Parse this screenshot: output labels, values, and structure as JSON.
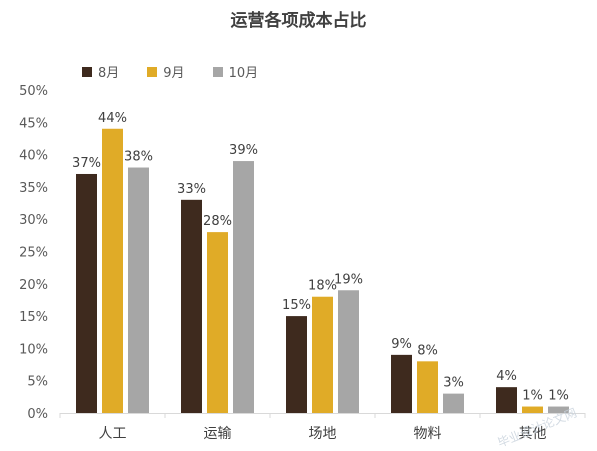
{
  "chart_data": {
    "type": "bar",
    "title": "运营各项成本占比",
    "categories": [
      "人工",
      "运输",
      "场地",
      "物料",
      "其他"
    ],
    "series": [
      {
        "name": "8月",
        "color": "#3e2a1e",
        "values": [
          37,
          33,
          15,
          9,
          4
        ],
        "labels": [
          "37%",
          "33%",
          "15%",
          "9%",
          "4%"
        ]
      },
      {
        "name": "9月",
        "color": "#e0ab27",
        "values": [
          44,
          28,
          18,
          8,
          1
        ],
        "labels": [
          "44%",
          "28%",
          "18%",
          "8%",
          "1%"
        ]
      },
      {
        "name": "10月",
        "color": "#a6a6a6",
        "values": [
          38,
          39,
          19,
          3,
          1
        ],
        "labels": [
          "38%",
          "39%",
          "19%",
          "3%",
          "1%"
        ]
      }
    ],
    "ylim": [
      0,
      50
    ],
    "yticks": [
      "0%",
      "5%",
      "10%",
      "15%",
      "20%",
      "25%",
      "30%",
      "35%",
      "40%",
      "45%",
      "50%"
    ],
    "legend": "top-left",
    "grid": false
  },
  "watermark": "毕业设计论文网"
}
